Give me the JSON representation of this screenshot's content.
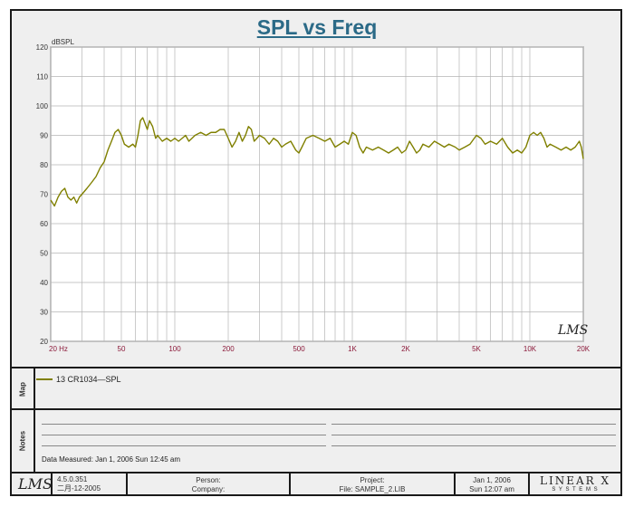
{
  "chart_data": {
    "type": "line",
    "title": "SPL vs Freq",
    "ylabel": "dBSPL",
    "xlabel": "",
    "xscale": "log",
    "xlim": [
      20,
      20000
    ],
    "ylim": [
      20,
      120
    ],
    "grid": true,
    "x_ticks": [
      {
        "v": 20,
        "label": "20  Hz"
      },
      {
        "v": 50,
        "label": "50"
      },
      {
        "v": 100,
        "label": "100"
      },
      {
        "v": 200,
        "label": "200"
      },
      {
        "v": 500,
        "label": "500"
      },
      {
        "v": 1000,
        "label": "1K"
      },
      {
        "v": 2000,
        "label": "2K"
      },
      {
        "v": 5000,
        "label": "5K"
      },
      {
        "v": 10000,
        "label": "10K"
      },
      {
        "v": 20000,
        "label": "20K"
      }
    ],
    "y_ticks": [
      20,
      30,
      40,
      50,
      60,
      70,
      80,
      90,
      100,
      110,
      120
    ],
    "series": [
      {
        "name": "13 CR1034—SPL",
        "color": "#808000",
        "points": [
          [
            20,
            68
          ],
          [
            21,
            66
          ],
          [
            22,
            69
          ],
          [
            23,
            71
          ],
          [
            24,
            72
          ],
          [
            25,
            69
          ],
          [
            26,
            68
          ],
          [
            27,
            69
          ],
          [
            28,
            67
          ],
          [
            29,
            69
          ],
          [
            30,
            70
          ],
          [
            32,
            72
          ],
          [
            34,
            74
          ],
          [
            36,
            76
          ],
          [
            38,
            79
          ],
          [
            40,
            81
          ],
          [
            42,
            85
          ],
          [
            44,
            88
          ],
          [
            46,
            91
          ],
          [
            48,
            92
          ],
          [
            50,
            90
          ],
          [
            52,
            87
          ],
          [
            55,
            86
          ],
          [
            58,
            87
          ],
          [
            60,
            86
          ],
          [
            62,
            90
          ],
          [
            64,
            95
          ],
          [
            66,
            96
          ],
          [
            68,
            94
          ],
          [
            70,
            92
          ],
          [
            72,
            95
          ],
          [
            75,
            93
          ],
          [
            78,
            89
          ],
          [
            80,
            90
          ],
          [
            85,
            88
          ],
          [
            90,
            89
          ],
          [
            95,
            88
          ],
          [
            100,
            89
          ],
          [
            105,
            88
          ],
          [
            110,
            89
          ],
          [
            115,
            90
          ],
          [
            120,
            88
          ],
          [
            125,
            89
          ],
          [
            130,
            90
          ],
          [
            140,
            91
          ],
          [
            150,
            90
          ],
          [
            160,
            91
          ],
          [
            170,
            91
          ],
          [
            180,
            92
          ],
          [
            190,
            92
          ],
          [
            200,
            89
          ],
          [
            210,
            86
          ],
          [
            220,
            88
          ],
          [
            230,
            91
          ],
          [
            240,
            88
          ],
          [
            250,
            90
          ],
          [
            260,
            93
          ],
          [
            270,
            92
          ],
          [
            280,
            88
          ],
          [
            290,
            89
          ],
          [
            300,
            90
          ],
          [
            320,
            89
          ],
          [
            340,
            87
          ],
          [
            360,
            89
          ],
          [
            380,
            88
          ],
          [
            400,
            86
          ],
          [
            420,
            87
          ],
          [
            450,
            88
          ],
          [
            480,
            85
          ],
          [
            500,
            84
          ],
          [
            520,
            86
          ],
          [
            550,
            89
          ],
          [
            600,
            90
          ],
          [
            650,
            89
          ],
          [
            700,
            88
          ],
          [
            750,
            89
          ],
          [
            800,
            86
          ],
          [
            850,
            87
          ],
          [
            900,
            88
          ],
          [
            950,
            87
          ],
          [
            1000,
            91
          ],
          [
            1050,
            90
          ],
          [
            1100,
            86
          ],
          [
            1150,
            84
          ],
          [
            1200,
            86
          ],
          [
            1300,
            85
          ],
          [
            1400,
            86
          ],
          [
            1500,
            85
          ],
          [
            1600,
            84
          ],
          [
            1700,
            85
          ],
          [
            1800,
            86
          ],
          [
            1900,
            84
          ],
          [
            2000,
            85
          ],
          [
            2100,
            88
          ],
          [
            2200,
            86
          ],
          [
            2300,
            84
          ],
          [
            2400,
            85
          ],
          [
            2500,
            87
          ],
          [
            2700,
            86
          ],
          [
            2900,
            88
          ],
          [
            3100,
            87
          ],
          [
            3300,
            86
          ],
          [
            3500,
            87
          ],
          [
            3800,
            86
          ],
          [
            4000,
            85
          ],
          [
            4300,
            86
          ],
          [
            4600,
            87
          ],
          [
            5000,
            90
          ],
          [
            5300,
            89
          ],
          [
            5600,
            87
          ],
          [
            6000,
            88
          ],
          [
            6500,
            87
          ],
          [
            7000,
            89
          ],
          [
            7500,
            86
          ],
          [
            8000,
            84
          ],
          [
            8500,
            85
          ],
          [
            9000,
            84
          ],
          [
            9500,
            86
          ],
          [
            10000,
            90
          ],
          [
            10500,
            91
          ],
          [
            11000,
            90
          ],
          [
            11500,
            91
          ],
          [
            12000,
            89
          ],
          [
            12500,
            86
          ],
          [
            13000,
            87
          ],
          [
            14000,
            86
          ],
          [
            15000,
            85
          ],
          [
            16000,
            86
          ],
          [
            17000,
            85
          ],
          [
            18000,
            86
          ],
          [
            19000,
            88
          ],
          [
            19500,
            86
          ],
          [
            20000,
            82
          ]
        ]
      }
    ],
    "watermark": "LMS"
  },
  "map_label": "Map",
  "notes_label": "Notes",
  "data_measured": "Data Measured: Jan  1, 2006  Sun 12:45 am",
  "footer": {
    "logo": "LMS",
    "version": "4.5.0.351",
    "build_date": "二月-12-2005",
    "person_label": "Person:",
    "company_label": "Company:",
    "project_label": "Project:",
    "file_label": "File: SAMPLE_2.LIB",
    "date": "Jan  1, 2006",
    "time": "Sun 12:07 am",
    "brand": "LINEAR X",
    "brand_sub": "S Y S T E M S"
  }
}
